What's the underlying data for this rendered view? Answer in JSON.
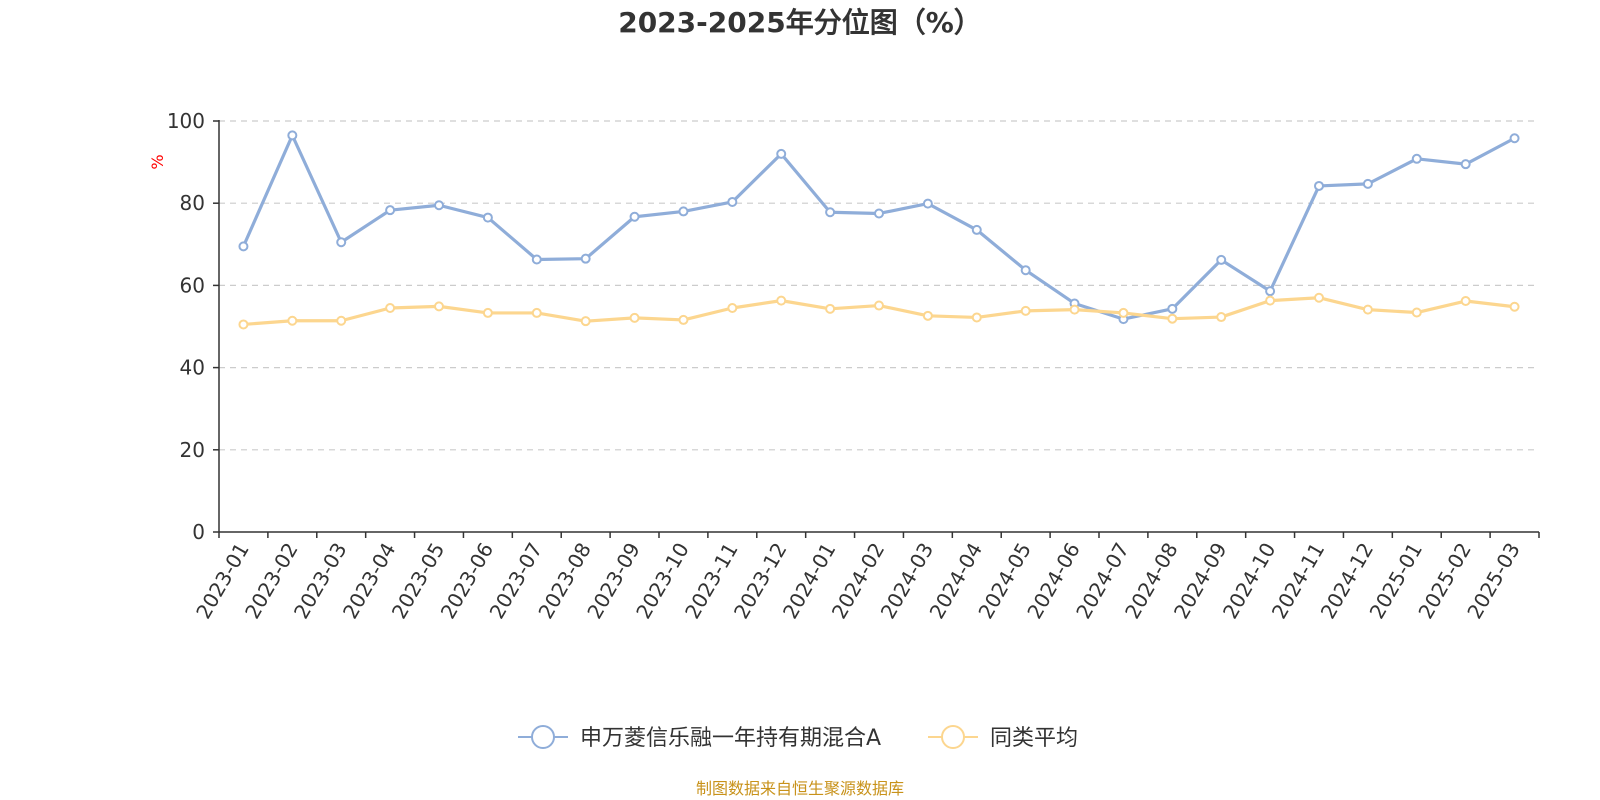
{
  "colors": {
    "series_1": "#8fadd9",
    "series_2": "#fcd68f",
    "ylabel": "#ff0000",
    "source": "#c8921a",
    "grid": "#cccccc",
    "axis": "#333333"
  },
  "source_note": "制图数据来自恒生聚源数据库",
  "chart_data": {
    "type": "line",
    "title": "2023-2025年分位图（%）",
    "xlabel": "",
    "ylabel": "%",
    "ylim": [
      0,
      100
    ],
    "yticks": [
      "0",
      "20",
      "40",
      "60",
      "80",
      "100"
    ],
    "grid": true,
    "legend_position": "bottom-center",
    "categories": [
      "2023-01",
      "2023-02",
      "2023-03",
      "2023-04",
      "2023-05",
      "2023-06",
      "2023-07",
      "2023-08",
      "2023-09",
      "2023-10",
      "2023-11",
      "2023-12",
      "2024-01",
      "2024-02",
      "2024-03",
      "2024-04",
      "2024-05",
      "2024-06",
      "2024-07",
      "2024-08",
      "2024-09",
      "2024-10",
      "2024-11",
      "2024-12",
      "2025-01",
      "2025-02",
      "2025-03"
    ],
    "series": [
      {
        "name": "申万菱信乐融一年持有期混合A",
        "color": "#8fadd9",
        "values": [
          69.5,
          96.5,
          70.5,
          78.3,
          79.5,
          76.5,
          66.3,
          66.5,
          76.7,
          78.0,
          80.3,
          92.0,
          77.8,
          77.5,
          79.9,
          73.5,
          63.7,
          55.6,
          51.8,
          54.3,
          66.2,
          58.6,
          84.2,
          84.7,
          90.8,
          89.5,
          95.8
        ]
      },
      {
        "name": "同类平均",
        "color": "#fcd68f",
        "values": [
          50.5,
          51.4,
          51.4,
          54.5,
          54.9,
          53.3,
          53.3,
          51.3,
          52.1,
          51.6,
          54.5,
          56.3,
          54.3,
          55.1,
          52.6,
          52.2,
          53.8,
          54.1,
          53.3,
          51.9,
          52.3,
          56.3,
          57.0,
          54.1,
          53.4,
          56.2,
          54.8
        ]
      }
    ]
  }
}
